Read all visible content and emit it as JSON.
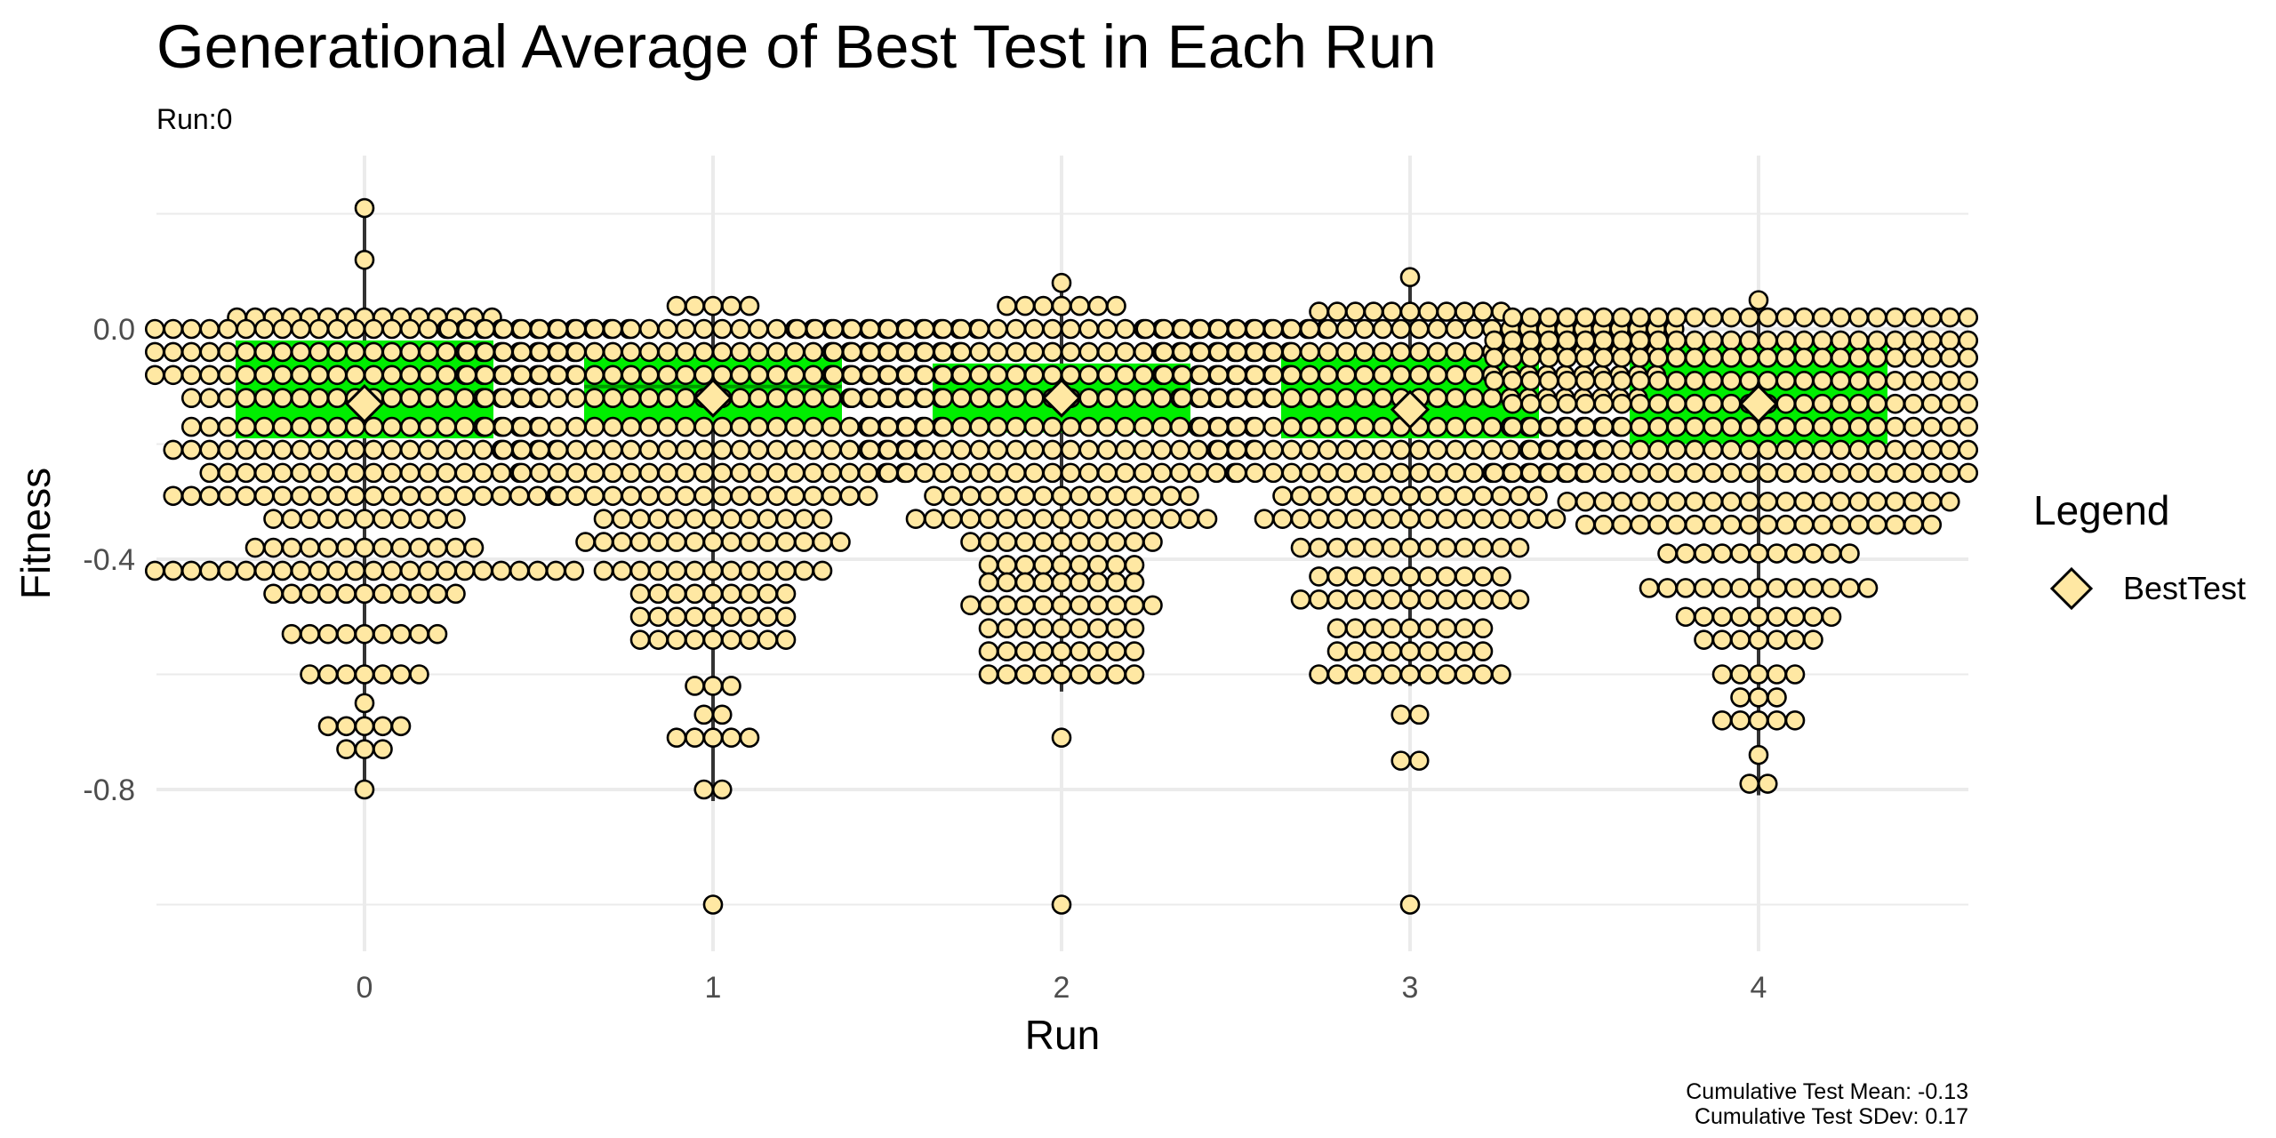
{
  "chart_data": {
    "type": "scatter",
    "title": "Generational Average of Best Test in Each Run",
    "subtitle": "Run:0",
    "xlabel": "Run",
    "ylabel": "Fitness",
    "x_ticks": [
      "0",
      "1",
      "2",
      "3",
      "4"
    ],
    "y_ticks": [
      0.0,
      -0.4,
      -0.8
    ],
    "y_tick_labels": [
      "0.0",
      "-0.4",
      "-0.8"
    ],
    "ylim": [
      -1.08,
      0.3
    ],
    "grid": true,
    "legend": {
      "title": "Legend",
      "position": "right",
      "entries": [
        {
          "label": "BestTest",
          "shape": "diamond"
        }
      ]
    },
    "caption": [
      "Cumulative Test Mean: -0.13",
      "Cumulative Test SDev: 0.17"
    ],
    "colors": {
      "point_fill": "#ffe8a3",
      "point_stroke": "#000000",
      "box": "#00ee00",
      "whisker": "#333333"
    },
    "series": [
      {
        "run": 0,
        "mean": -0.13,
        "box": {
          "q1": -0.19,
          "median": -0.11,
          "q3": -0.02,
          "whisker_low": -0.8,
          "whisker_high": 0.21
        },
        "dots": [
          [
            0.21,
            1
          ],
          [
            0.12,
            1
          ],
          [
            0.02,
            15
          ],
          [
            0.0,
            30
          ],
          [
            -0.04,
            24
          ],
          [
            -0.08,
            24
          ],
          [
            -0.12,
            20
          ],
          [
            -0.17,
            20
          ],
          [
            -0.21,
            22
          ],
          [
            -0.25,
            18
          ],
          [
            -0.29,
            22
          ],
          [
            -0.33,
            11
          ],
          [
            -0.38,
            13
          ],
          [
            -0.42,
            24
          ],
          [
            -0.46,
            11
          ],
          [
            -0.53,
            9
          ],
          [
            -0.6,
            7
          ],
          [
            -0.65,
            1
          ],
          [
            -0.69,
            5
          ],
          [
            -0.73,
            3
          ],
          [
            -0.8,
            1
          ]
        ]
      },
      {
        "run": 1,
        "mean": -0.12,
        "box": {
          "q1": -0.17,
          "median": -0.1,
          "q3": -0.05,
          "whisker_low": -0.82,
          "whisker_high": 0.04
        },
        "dots": [
          [
            0.04,
            5
          ],
          [
            0.0,
            30
          ],
          [
            -0.04,
            28
          ],
          [
            -0.08,
            28
          ],
          [
            -0.12,
            26
          ],
          [
            -0.17,
            26
          ],
          [
            -0.21,
            24
          ],
          [
            -0.25,
            22
          ],
          [
            -0.29,
            18
          ],
          [
            -0.33,
            13
          ],
          [
            -0.37,
            15
          ],
          [
            -0.42,
            13
          ],
          [
            -0.46,
            9
          ],
          [
            -0.5,
            9
          ],
          [
            -0.54,
            9
          ],
          [
            -0.62,
            3
          ],
          [
            -0.67,
            2
          ],
          [
            -0.71,
            5
          ],
          [
            -0.8,
            2
          ],
          [
            -1.0,
            1
          ]
        ]
      },
      {
        "run": 2,
        "mean": -0.12,
        "box": {
          "q1": -0.18,
          "median": -0.11,
          "q3": -0.06,
          "whisker_low": -0.63,
          "whisker_high": 0.08
        },
        "dots": [
          [
            0.08,
            1
          ],
          [
            0.04,
            7
          ],
          [
            0.0,
            30
          ],
          [
            -0.04,
            26
          ],
          [
            -0.08,
            26
          ],
          [
            -0.12,
            24
          ],
          [
            -0.17,
            22
          ],
          [
            -0.21,
            22
          ],
          [
            -0.25,
            20
          ],
          [
            -0.29,
            15
          ],
          [
            -0.33,
            17
          ],
          [
            -0.37,
            11
          ],
          [
            -0.41,
            9
          ],
          [
            -0.44,
            9
          ],
          [
            -0.48,
            11
          ],
          [
            -0.52,
            9
          ],
          [
            -0.56,
            9
          ],
          [
            -0.6,
            9
          ],
          [
            -0.71,
            1
          ],
          [
            -1.0,
            1
          ]
        ]
      },
      {
        "run": 3,
        "mean": -0.14,
        "box": {
          "q1": -0.19,
          "median": -0.13,
          "q3": -0.05,
          "whisker_low": -0.62,
          "whisker_high": 0.09
        },
        "dots": [
          [
            0.09,
            1
          ],
          [
            0.03,
            11
          ],
          [
            0.0,
            30
          ],
          [
            -0.04,
            28
          ],
          [
            -0.08,
            28
          ],
          [
            -0.12,
            26
          ],
          [
            -0.17,
            24
          ],
          [
            -0.21,
            22
          ],
          [
            -0.25,
            20
          ],
          [
            -0.29,
            15
          ],
          [
            -0.33,
            17
          ],
          [
            -0.38,
            13
          ],
          [
            -0.43,
            11
          ],
          [
            -0.47,
            13
          ],
          [
            -0.52,
            9
          ],
          [
            -0.56,
            9
          ],
          [
            -0.6,
            11
          ],
          [
            -0.67,
            2
          ],
          [
            -0.75,
            2
          ],
          [
            -1.0,
            1
          ]
        ]
      },
      {
        "run": 4,
        "mean": -0.13,
        "box": {
          "q1": -0.2,
          "median": -0.13,
          "q3": -0.02,
          "whisker_low": -0.81,
          "whisker_high": 0.05
        },
        "dots": [
          [
            0.05,
            1
          ],
          [
            0.02,
            28
          ],
          [
            -0.02,
            30
          ],
          [
            -0.05,
            30
          ],
          [
            -0.09,
            30
          ],
          [
            -0.13,
            28
          ],
          [
            -0.17,
            28
          ],
          [
            -0.21,
            26
          ],
          [
            -0.25,
            30
          ],
          [
            -0.3,
            22
          ],
          [
            -0.34,
            20
          ],
          [
            -0.39,
            11
          ],
          [
            -0.45,
            13
          ],
          [
            -0.5,
            9
          ],
          [
            -0.54,
            7
          ],
          [
            -0.6,
            5
          ],
          [
            -0.64,
            3
          ],
          [
            -0.68,
            5
          ],
          [
            -0.74,
            1
          ],
          [
            -0.79,
            2
          ]
        ]
      }
    ]
  }
}
